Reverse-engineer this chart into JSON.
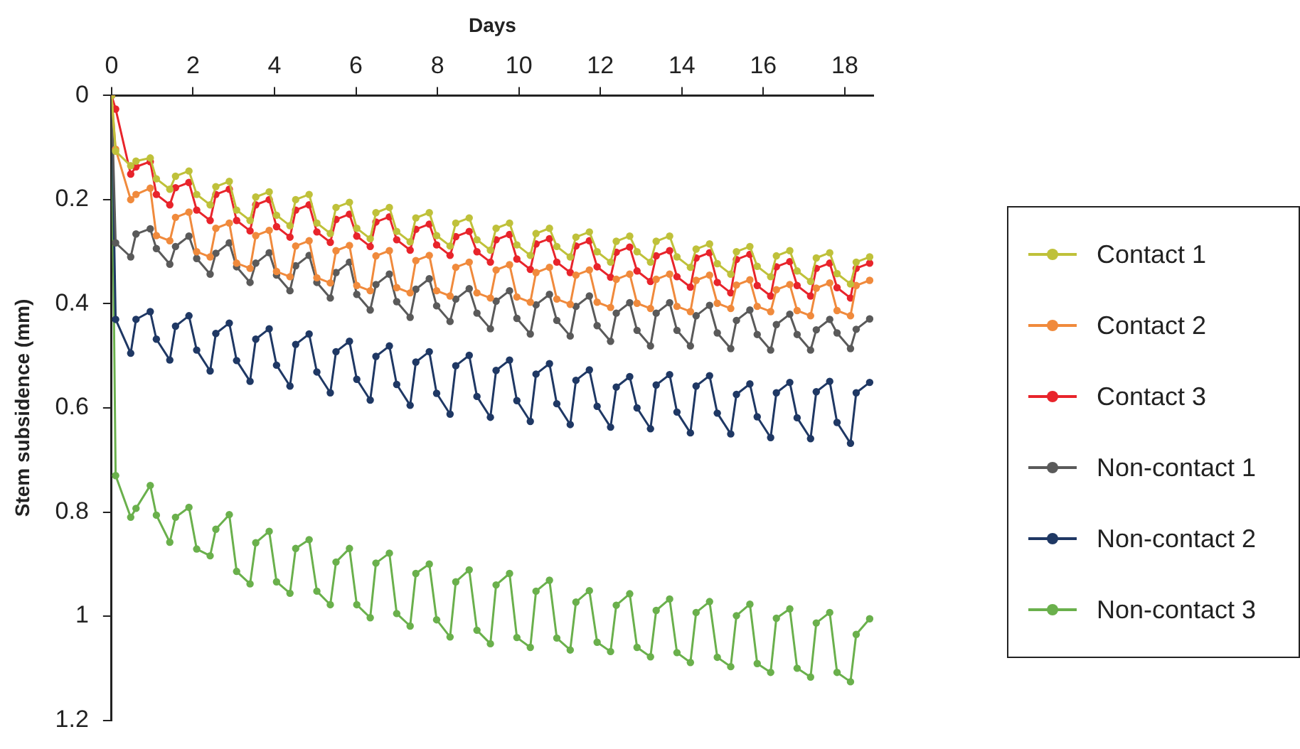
{
  "chart_data": {
    "type": "line",
    "xlabel": "Days",
    "ylabel": "Stem subsidence (mm)",
    "xlim": [
      0,
      18.7
    ],
    "xticks": [
      0,
      2,
      4,
      6,
      8,
      10,
      12,
      14,
      16,
      18
    ],
    "ylim": [
      1.2,
      0
    ],
    "yticks": [
      0,
      0.2,
      0.4,
      0.6,
      0.8,
      1,
      1.2
    ],
    "grid": false,
    "legend": "right",
    "marker": "circle",
    "line_style": "solid",
    "x": [
      0,
      0.1,
      0.47,
      0.6,
      0.95,
      1.1,
      1.43,
      1.57,
      1.9,
      2.09,
      2.42,
      2.56,
      2.89,
      3.07,
      3.4,
      3.54,
      3.87,
      4.05,
      4.38,
      4.52,
      4.85,
      5.04,
      5.37,
      5.51,
      5.84,
      6.02,
      6.35,
      6.49,
      6.82,
      7.0,
      7.33,
      7.47,
      7.8,
      7.98,
      8.31,
      8.45,
      8.78,
      8.97,
      9.3,
      9.44,
      9.77,
      9.95,
      10.28,
      10.42,
      10.75,
      10.93,
      11.26,
      11.4,
      11.73,
      11.92,
      12.25,
      12.39,
      12.72,
      12.9,
      13.23,
      13.37,
      13.7,
      13.88,
      14.21,
      14.35,
      14.68,
      14.87,
      15.2,
      15.34,
      15.67,
      15.85,
      16.18,
      16.32,
      16.65,
      16.83,
      17.16,
      17.3,
      17.63,
      17.81,
      18.14,
      18.28,
      18.61
    ],
    "series": [
      {
        "name": "Contact 1",
        "color": "#bfc13a",
        "values": [
          0,
          0.107,
          0.135,
          0.126,
          0.12,
          0.16,
          0.18,
          0.155,
          0.145,
          0.19,
          0.21,
          0.175,
          0.165,
          0.22,
          0.24,
          0.195,
          0.185,
          0.23,
          0.25,
          0.2,
          0.19,
          0.245,
          0.265,
          0.215,
          0.205,
          0.255,
          0.275,
          0.225,
          0.215,
          0.261,
          0.281,
          0.235,
          0.225,
          0.269,
          0.289,
          0.245,
          0.235,
          0.277,
          0.297,
          0.255,
          0.245,
          0.287,
          0.307,
          0.265,
          0.255,
          0.29,
          0.31,
          0.272,
          0.262,
          0.3,
          0.32,
          0.28,
          0.27,
          0.3,
          0.32,
          0.28,
          0.27,
          0.31,
          0.33,
          0.295,
          0.285,
          0.323,
          0.343,
          0.3,
          0.29,
          0.328,
          0.348,
          0.308,
          0.298,
          0.337,
          0.357,
          0.312,
          0.302,
          0.342,
          0.362,
          0.32,
          0.31
        ]
      },
      {
        "name": "Contact 2",
        "color": "#f08a3c",
        "values": [
          0,
          0.103,
          0.2,
          0.19,
          0.178,
          0.269,
          0.279,
          0.234,
          0.224,
          0.3,
          0.31,
          0.255,
          0.245,
          0.322,
          0.332,
          0.269,
          0.259,
          0.338,
          0.348,
          0.289,
          0.279,
          0.35,
          0.36,
          0.298,
          0.288,
          0.365,
          0.375,
          0.308,
          0.298,
          0.369,
          0.379,
          0.317,
          0.307,
          0.375,
          0.385,
          0.33,
          0.32,
          0.379,
          0.389,
          0.335,
          0.325,
          0.387,
          0.397,
          0.34,
          0.33,
          0.391,
          0.401,
          0.345,
          0.335,
          0.397,
          0.407,
          0.353,
          0.343,
          0.399,
          0.409,
          0.353,
          0.343,
          0.405,
          0.415,
          0.355,
          0.345,
          0.399,
          0.409,
          0.364,
          0.354,
          0.405,
          0.415,
          0.373,
          0.363,
          0.413,
          0.423,
          0.37,
          0.36,
          0.413,
          0.423,
          0.365,
          0.355
        ]
      },
      {
        "name": "Contact 3",
        "color": "#e8242b",
        "values": [
          0,
          0.026,
          0.151,
          0.137,
          0.127,
          0.19,
          0.21,
          0.177,
          0.167,
          0.22,
          0.24,
          0.19,
          0.18,
          0.24,
          0.26,
          0.21,
          0.2,
          0.252,
          0.272,
          0.22,
          0.21,
          0.262,
          0.282,
          0.238,
          0.228,
          0.27,
          0.29,
          0.243,
          0.233,
          0.277,
          0.297,
          0.257,
          0.247,
          0.287,
          0.307,
          0.271,
          0.261,
          0.3,
          0.32,
          0.277,
          0.267,
          0.314,
          0.334,
          0.285,
          0.275,
          0.32,
          0.34,
          0.289,
          0.279,
          0.329,
          0.349,
          0.301,
          0.291,
          0.337,
          0.357,
          0.308,
          0.298,
          0.348,
          0.368,
          0.312,
          0.302,
          0.359,
          0.379,
          0.315,
          0.305,
          0.365,
          0.385,
          0.329,
          0.319,
          0.365,
          0.385,
          0.332,
          0.322,
          0.369,
          0.389,
          0.332,
          0.322
        ]
      },
      {
        "name": "Non-contact 1",
        "color": "#5a5a5a",
        "values": [
          0,
          0.283,
          0.31,
          0.266,
          0.256,
          0.294,
          0.324,
          0.29,
          0.27,
          0.313,
          0.343,
          0.303,
          0.283,
          0.329,
          0.359,
          0.322,
          0.302,
          0.345,
          0.375,
          0.327,
          0.307,
          0.359,
          0.389,
          0.34,
          0.32,
          0.382,
          0.412,
          0.363,
          0.343,
          0.396,
          0.426,
          0.372,
          0.352,
          0.404,
          0.434,
          0.391,
          0.371,
          0.418,
          0.448,
          0.395,
          0.375,
          0.428,
          0.458,
          0.402,
          0.382,
          0.432,
          0.462,
          0.405,
          0.385,
          0.442,
          0.472,
          0.418,
          0.398,
          0.451,
          0.481,
          0.418,
          0.398,
          0.451,
          0.481,
          0.423,
          0.403,
          0.456,
          0.486,
          0.432,
          0.412,
          0.459,
          0.489,
          0.44,
          0.42,
          0.459,
          0.489,
          0.45,
          0.43,
          0.456,
          0.486,
          0.449,
          0.429
        ]
      },
      {
        "name": "Non-contact 2",
        "color": "#1f3864",
        "values": [
          0,
          0.43,
          0.495,
          0.43,
          0.415,
          0.468,
          0.508,
          0.443,
          0.423,
          0.489,
          0.529,
          0.457,
          0.437,
          0.509,
          0.549,
          0.468,
          0.448,
          0.518,
          0.558,
          0.478,
          0.458,
          0.531,
          0.571,
          0.492,
          0.472,
          0.545,
          0.585,
          0.501,
          0.481,
          0.555,
          0.595,
          0.512,
          0.492,
          0.572,
          0.612,
          0.519,
          0.499,
          0.578,
          0.618,
          0.528,
          0.508,
          0.586,
          0.626,
          0.535,
          0.515,
          0.592,
          0.632,
          0.547,
          0.527,
          0.597,
          0.637,
          0.56,
          0.54,
          0.6,
          0.64,
          0.556,
          0.536,
          0.608,
          0.648,
          0.558,
          0.538,
          0.61,
          0.65,
          0.574,
          0.554,
          0.617,
          0.657,
          0.571,
          0.551,
          0.619,
          0.659,
          0.569,
          0.549,
          0.628,
          0.668,
          0.571,
          0.551
        ]
      },
      {
        "name": "Non-contact 3",
        "color": "#6ab04c",
        "values": [
          0,
          0.73,
          0.81,
          0.793,
          0.749,
          0.806,
          0.858,
          0.81,
          0.791,
          0.871,
          0.884,
          0.833,
          0.805,
          0.914,
          0.938,
          0.859,
          0.837,
          0.934,
          0.956,
          0.87,
          0.853,
          0.952,
          0.978,
          0.896,
          0.87,
          0.978,
          1.003,
          0.898,
          0.879,
          0.995,
          1.019,
          0.918,
          0.9,
          1.007,
          1.04,
          0.934,
          0.911,
          1.027,
          1.053,
          0.94,
          0.918,
          1.041,
          1.06,
          0.952,
          0.931,
          1.042,
          1.065,
          0.973,
          0.951,
          1.05,
          1.068,
          0.979,
          0.957,
          1.06,
          1.078,
          0.989,
          0.967,
          1.07,
          1.089,
          0.993,
          0.972,
          1.079,
          1.097,
          0.999,
          0.977,
          1.091,
          1.108,
          1.004,
          0.986,
          1.1,
          1.117,
          1.013,
          0.993,
          1.108,
          1.126,
          1.035,
          1.005
        ]
      }
    ]
  }
}
